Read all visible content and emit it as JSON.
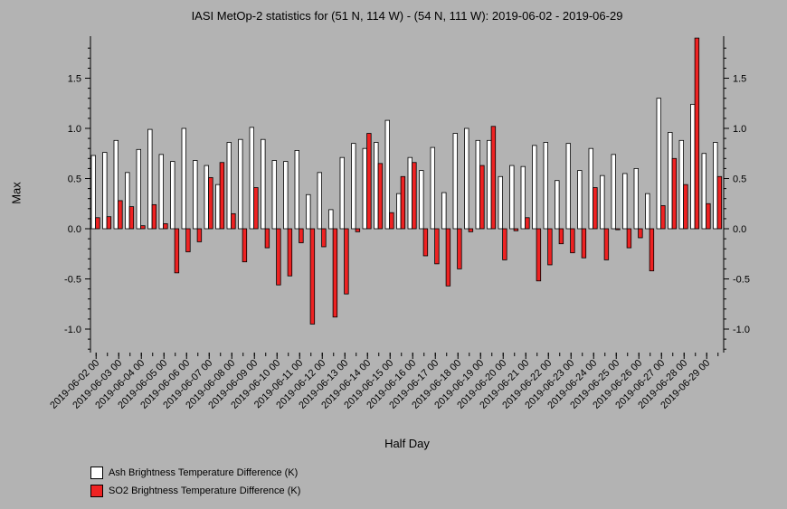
{
  "title": "IASI MetOp-2 statistics for (51 N, 114 W) - (54 N, 111 W): 2019-06-02 - 2019-06-29",
  "colors": {
    "ash": "#ffffff",
    "so2": "#ee2222",
    "background": "#b3b3b3",
    "axis": "#000000"
  },
  "chart_data": {
    "type": "bar",
    "xlabel": "Half Day",
    "ylabel": "Max",
    "ylim": [
      -1.25,
      1.9
    ],
    "yticks": [
      -1.0,
      -0.5,
      0.0,
      0.5,
      1.0,
      1.5
    ],
    "ytick_labels": [
      "-1.0",
      "-0.5",
      "0.0",
      "0.5",
      "1.0",
      "1.5"
    ],
    "xtick_labels": [
      "2019-06-02 00",
      "2019-06-03 00",
      "2019-06-04 00",
      "2019-06-05 00",
      "2019-06-06 00",
      "2019-06-07 00",
      "2019-06-08 00",
      "2019-06-09 00",
      "2019-06-10 00",
      "2019-06-11 00",
      "2019-06-12 00",
      "2019-06-13 00",
      "2019-06-14 00",
      "2019-06-15 00",
      "2019-06-16 00",
      "2019-06-17 00",
      "2019-06-18 00",
      "2019-06-19 00",
      "2019-06-20 00",
      "2019-06-21 00",
      "2019-06-22 00",
      "2019-06-23 00",
      "2019-06-24 00",
      "2019-06-25 00",
      "2019-06-26 00",
      "2019-06-27 00",
      "2019-06-28 00",
      "2019-06-29 00"
    ],
    "legend_position": "bottom-left",
    "series": [
      {
        "name": "Ash Brightness Temperature Difference (K)",
        "color": "#ffffff",
        "values": [
          0.73,
          0.76,
          0.88,
          0.56,
          0.79,
          0.99,
          0.74,
          0.67,
          1.0,
          0.68,
          0.63,
          0.44,
          0.86,
          0.89,
          1.01,
          0.89,
          0.68,
          0.67,
          0.78,
          0.34,
          0.56,
          0.19,
          0.71,
          0.85,
          0.8,
          0.86,
          1.08,
          0.35,
          0.71,
          0.58,
          0.81,
          0.36,
          0.95,
          1.0,
          0.88,
          0.88,
          0.52,
          0.63,
          0.62,
          0.83,
          0.86,
          0.48,
          0.85,
          0.58,
          0.8,
          0.53,
          0.74,
          0.55,
          0.6,
          0.35,
          1.3,
          0.96,
          0.88,
          1.24,
          0.75,
          0.86
        ]
      },
      {
        "name": "SO2 Brightness Temperature Difference (K)",
        "color": "#ee2222",
        "values": [
          0.11,
          0.12,
          0.28,
          0.22,
          0.03,
          0.24,
          0.05,
          -0.44,
          -0.23,
          -0.13,
          0.51,
          0.66,
          0.15,
          -0.33,
          0.41,
          -0.19,
          -0.56,
          -0.47,
          -0.14,
          -0.95,
          -0.18,
          -0.88,
          -0.65,
          -0.03,
          0.95,
          0.65,
          0.16,
          0.52,
          0.66,
          -0.27,
          -0.35,
          -0.57,
          -0.4,
          -0.03,
          0.63,
          1.02,
          -0.31,
          -0.02,
          0.11,
          -0.52,
          -0.36,
          -0.15,
          -0.24,
          -0.29,
          0.41,
          -0.31,
          -0.01,
          -0.19,
          -0.09,
          -0.42,
          0.23,
          0.7,
          0.44,
          1.9,
          0.25,
          0.52
        ]
      }
    ]
  }
}
